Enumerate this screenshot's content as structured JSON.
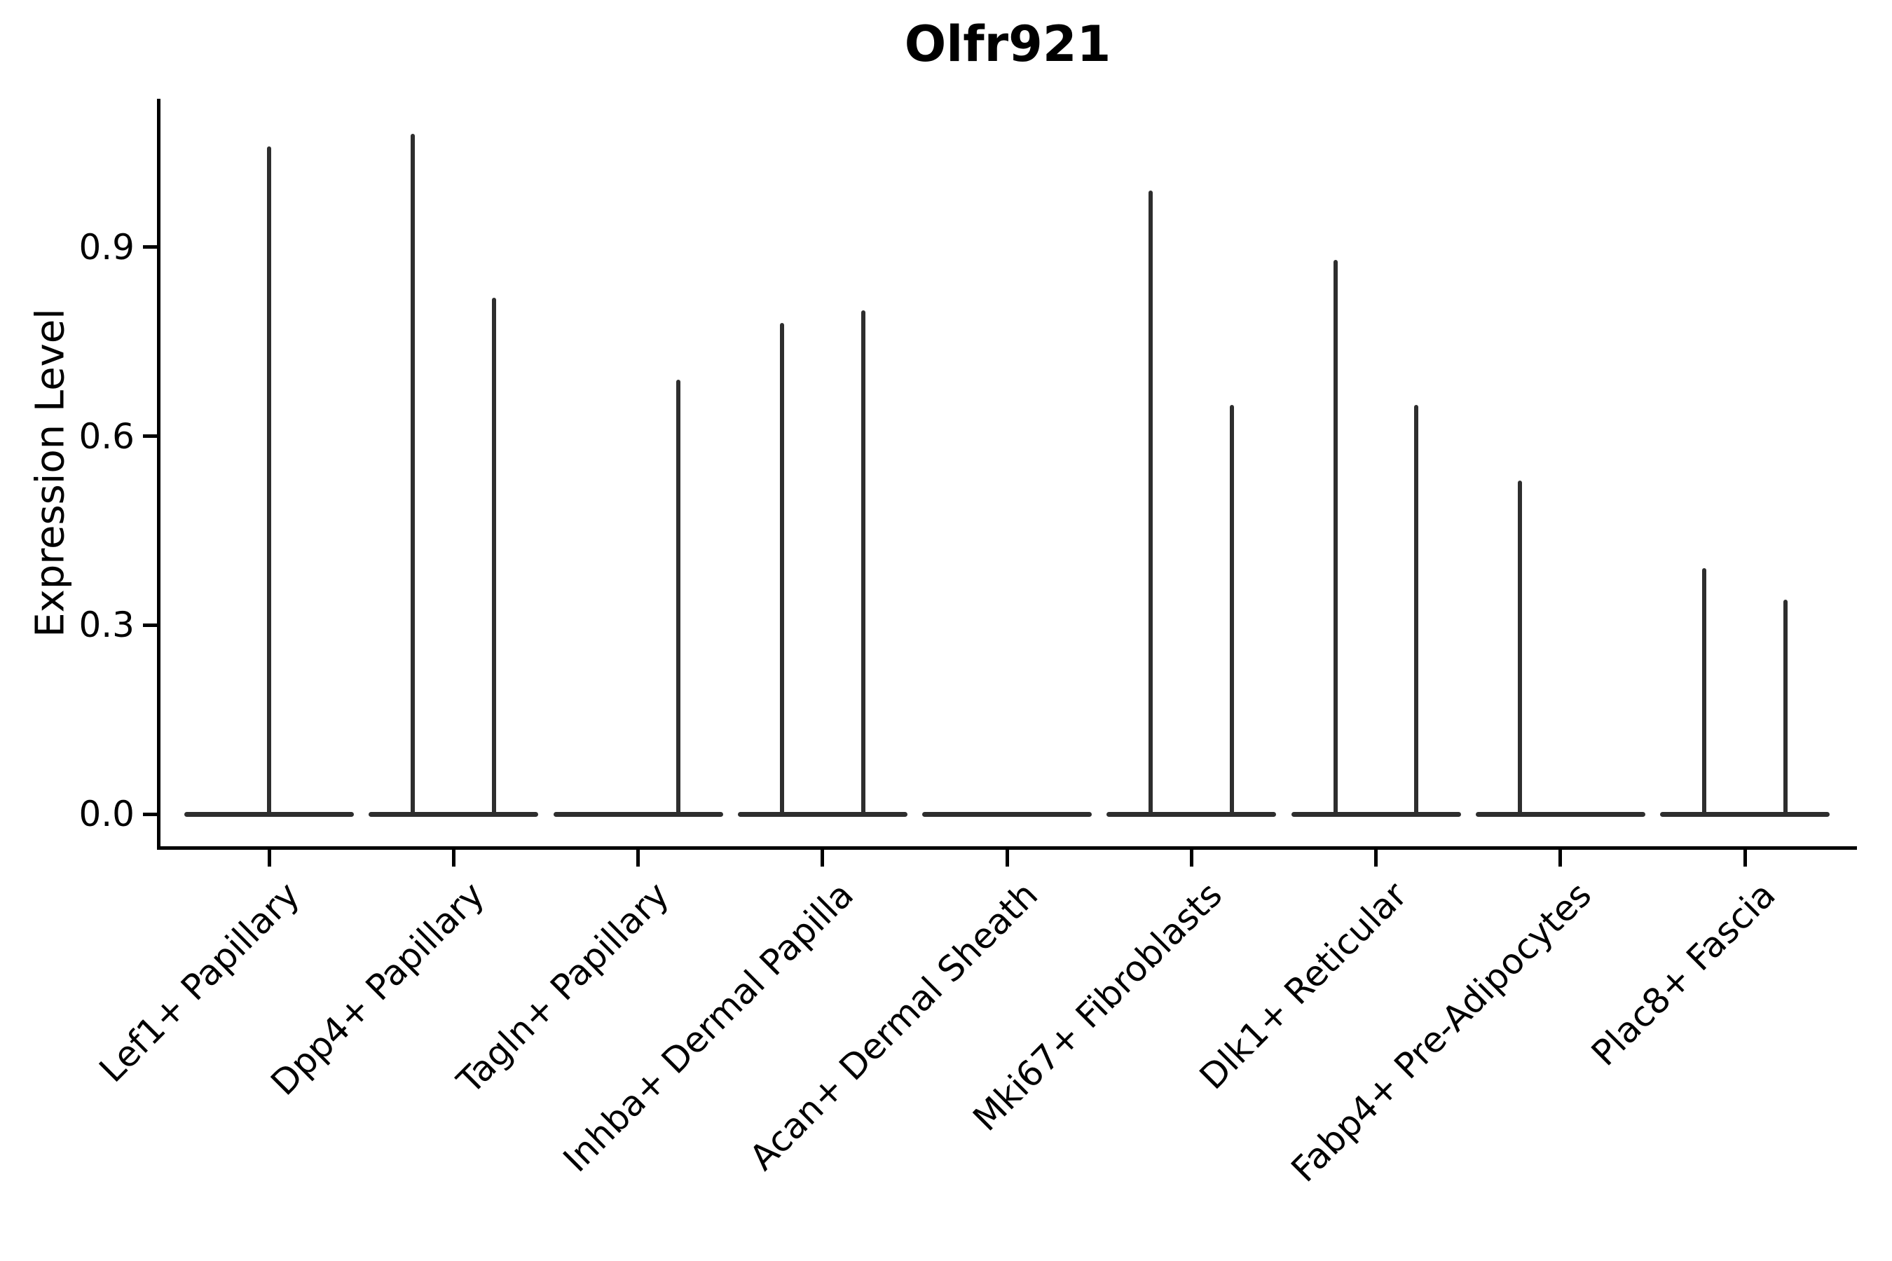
{
  "title": "Olfr921",
  "ylabel": "Expression Level",
  "colors": {
    "background": "#ffffff",
    "violin_line": "#2e2e2e",
    "axis": "#000000",
    "text": "#000000"
  },
  "chart_data": {
    "type": "violin",
    "title": "Olfr921",
    "xlabel": "",
    "ylabel": "Expression Level",
    "ylim": [
      -0.05,
      1.14
    ],
    "yticks": [
      0.0,
      0.3,
      0.6,
      0.9
    ],
    "ytick_labels": [
      "0.0",
      "0.3",
      "0.6",
      "0.9"
    ],
    "grid": false,
    "legend": "none",
    "categories": [
      "Lef1+ Papillary",
      "Dpp4+ Papillary",
      "Tagln+ Papillary",
      "Inhba+ Dermal Papilla",
      "Acan+ Dermal Sheath",
      "Mki67+ Fibroblasts",
      "Dlk1+ Reticular",
      "Fabp4+ Pre-Adipocytes",
      "Plac8+ Fascia"
    ],
    "description": "Each group shows a flat density line at expression 0 spanning the group width, plus very thin vertical density spikes (rare expressing cells) whose tops mark the maximum expression value; pos is the spike offset within the group as a fraction of group spacing.",
    "baseline_value": 0.0,
    "violins": [
      {
        "category": "Lef1+ Papillary",
        "spikes": [
          {
            "pos": 0.0,
            "max": 1.06
          }
        ]
      },
      {
        "category": "Dpp4+ Papillary",
        "spikes": [
          {
            "pos": -0.22,
            "max": 1.08
          },
          {
            "pos": 0.22,
            "max": 0.82
          }
        ]
      },
      {
        "category": "Tagln+ Papillary",
        "spikes": [
          {
            "pos": 0.22,
            "max": 0.69
          }
        ]
      },
      {
        "category": "Inhba+ Dermal Papilla",
        "spikes": [
          {
            "pos": -0.22,
            "max": 0.78
          },
          {
            "pos": 0.22,
            "max": 0.8
          }
        ]
      },
      {
        "category": "Acan+ Dermal Sheath",
        "spikes": []
      },
      {
        "category": "Mki67+ Fibroblasts",
        "spikes": [
          {
            "pos": -0.22,
            "max": 0.99
          },
          {
            "pos": 0.22,
            "max": 0.65
          }
        ]
      },
      {
        "category": "Dlk1+ Reticular",
        "spikes": [
          {
            "pos": -0.22,
            "max": 0.88
          },
          {
            "pos": 0.22,
            "max": 0.65
          }
        ]
      },
      {
        "category": "Fabp4+ Pre-Adipocytes",
        "spikes": [
          {
            "pos": -0.22,
            "max": 0.53
          }
        ]
      },
      {
        "category": "Plac8+ Fascia",
        "spikes": [
          {
            "pos": -0.22,
            "max": 0.39
          },
          {
            "pos": 0.22,
            "max": 0.34
          }
        ]
      }
    ]
  }
}
